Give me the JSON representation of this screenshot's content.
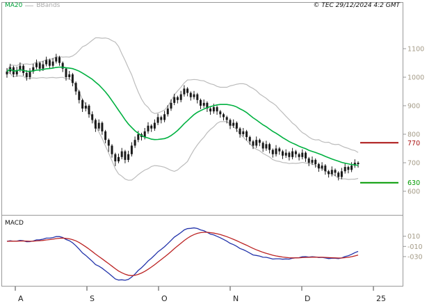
{
  "header": {
    "copyright": "© TEC 29/12/2024 4:2 GMT"
  },
  "legend": {
    "ma_label": "MA20",
    "bbands_label": "BBands"
  },
  "macd_panel": {
    "label": "MACD"
  },
  "chart_data": {
    "type": "candlestick",
    "panels": [
      "price",
      "macd"
    ],
    "axis_label_color": "#a39a86",
    "candle_color": "#1a1a1a",
    "price_axis": {
      "ticks": [
        1100,
        1000,
        900,
        800,
        700,
        600
      ]
    },
    "x_axis": {
      "labels": [
        "A",
        "S",
        "O",
        "N",
        "D",
        "25"
      ]
    },
    "levels": [
      {
        "label": "770",
        "value": 770,
        "color": "#aa1111"
      },
      {
        "label": "630",
        "value": 630,
        "color": "#009900"
      }
    ],
    "indicators": {
      "ma20": {
        "period": 20,
        "color": "#00b140"
      },
      "bbands": {
        "period": 20,
        "stddev": 2,
        "color": "#bcbcbc"
      },
      "macd": {
        "fast": 12,
        "slow": 26,
        "signal": 9,
        "macd_color": "#2233aa",
        "signal_color": "#bb2222",
        "ticks": [
          {
            "label": "010",
            "value": 10
          },
          {
            "label": "-010",
            "value": -10
          },
          {
            "label": "-030",
            "value": -30
          }
        ]
      }
    },
    "candles": [
      [
        1010,
        1032,
        998,
        1020
      ],
      [
        1020,
        1047,
        1012,
        1035
      ],
      [
        1035,
        1040,
        1000,
        1010
      ],
      [
        1010,
        1037,
        1002,
        1025
      ],
      [
        1025,
        1052,
        1018,
        1040
      ],
      [
        1040,
        1045,
        1005,
        1015
      ],
      [
        1015,
        1025,
        988,
        1000
      ],
      [
        1000,
        1032,
        992,
        1020
      ],
      [
        1020,
        1047,
        1012,
        1035
      ],
      [
        1035,
        1062,
        1028,
        1050
      ],
      [
        1050,
        1055,
        1020,
        1030
      ],
      [
        1030,
        1057,
        1022,
        1045
      ],
      [
        1045,
        1072,
        1038,
        1060
      ],
      [
        1060,
        1065,
        1030,
        1040
      ],
      [
        1040,
        1067,
        1032,
        1055
      ],
      [
        1055,
        1082,
        1048,
        1070
      ],
      [
        1070,
        1075,
        1040,
        1050
      ],
      [
        1050,
        1055,
        1018,
        1030
      ],
      [
        1030,
        1035,
        988,
        1000
      ],
      [
        1000,
        1022,
        992,
        1010
      ],
      [
        1010,
        1015,
        968,
        980
      ],
      [
        980,
        985,
        938,
        950
      ],
      [
        950,
        955,
        908,
        920
      ],
      [
        920,
        925,
        878,
        890
      ],
      [
        890,
        912,
        880,
        900
      ],
      [
        900,
        905,
        858,
        870
      ],
      [
        870,
        880,
        838,
        850
      ],
      [
        850,
        855,
        808,
        820
      ],
      [
        820,
        852,
        812,
        840
      ],
      [
        840,
        845,
        798,
        810
      ],
      [
        810,
        815,
        768,
        780
      ],
      [
        780,
        785,
        738,
        760
      ],
      [
        760,
        765,
        718,
        730
      ],
      [
        730,
        735,
        688,
        705
      ],
      [
        705,
        732,
        698,
        720
      ],
      [
        720,
        752,
        712,
        740
      ],
      [
        740,
        745,
        698,
        710
      ],
      [
        710,
        742,
        702,
        730
      ],
      [
        730,
        772,
        722,
        760
      ],
      [
        760,
        792,
        752,
        780
      ],
      [
        780,
        812,
        772,
        800
      ],
      [
        800,
        805,
        778,
        790
      ],
      [
        790,
        822,
        782,
        810
      ],
      [
        810,
        842,
        802,
        830
      ],
      [
        830,
        835,
        808,
        820
      ],
      [
        820,
        852,
        812,
        840
      ],
      [
        840,
        872,
        832,
        860
      ],
      [
        860,
        865,
        838,
        850
      ],
      [
        850,
        882,
        842,
        870
      ],
      [
        870,
        902,
        862,
        890
      ],
      [
        890,
        922,
        882,
        910
      ],
      [
        910,
        942,
        902,
        930
      ],
      [
        930,
        935,
        908,
        920
      ],
      [
        920,
        952,
        912,
        940
      ],
      [
        940,
        972,
        932,
        960
      ],
      [
        960,
        965,
        933,
        945
      ],
      [
        945,
        950,
        918,
        930
      ],
      [
        930,
        952,
        922,
        940
      ],
      [
        940,
        945,
        908,
        920
      ],
      [
        920,
        925,
        888,
        900
      ],
      [
        900,
        922,
        892,
        910
      ],
      [
        910,
        915,
        878,
        890
      ],
      [
        890,
        895,
        868,
        880
      ],
      [
        880,
        907,
        872,
        895
      ],
      [
        895,
        900,
        868,
        880
      ],
      [
        880,
        885,
        858,
        870
      ],
      [
        870,
        875,
        848,
        860
      ],
      [
        860,
        865,
        838,
        850
      ],
      [
        850,
        855,
        818,
        830
      ],
      [
        830,
        852,
        822,
        840
      ],
      [
        840,
        845,
        808,
        820
      ],
      [
        820,
        825,
        788,
        800
      ],
      [
        800,
        822,
        792,
        810
      ],
      [
        810,
        815,
        778,
        790
      ],
      [
        790,
        795,
        763,
        775
      ],
      [
        775,
        780,
        748,
        760
      ],
      [
        760,
        792,
        752,
        780
      ],
      [
        780,
        785,
        758,
        770
      ],
      [
        770,
        775,
        738,
        750
      ],
      [
        750,
        777,
        742,
        765
      ],
      [
        765,
        770,
        733,
        745
      ],
      [
        745,
        750,
        718,
        730
      ],
      [
        730,
        762,
        722,
        750
      ],
      [
        750,
        755,
        728,
        740
      ],
      [
        740,
        745,
        713,
        725
      ],
      [
        725,
        747,
        717,
        735
      ],
      [
        735,
        740,
        708,
        720
      ],
      [
        720,
        752,
        712,
        740
      ],
      [
        740,
        745,
        718,
        730
      ],
      [
        730,
        735,
        708,
        720
      ],
      [
        720,
        747,
        712,
        735
      ],
      [
        735,
        740,
        703,
        715
      ],
      [
        715,
        720,
        688,
        700
      ],
      [
        700,
        722,
        692,
        710
      ],
      [
        710,
        715,
        683,
        695
      ],
      [
        695,
        700,
        668,
        680
      ],
      [
        680,
        702,
        672,
        690
      ],
      [
        690,
        695,
        658,
        670
      ],
      [
        670,
        675,
        648,
        660
      ],
      [
        660,
        687,
        652,
        675
      ],
      [
        675,
        680,
        653,
        665
      ],
      [
        665,
        670,
        638,
        650
      ],
      [
        650,
        682,
        642,
        670
      ],
      [
        670,
        697,
        662,
        685
      ],
      [
        685,
        690,
        663,
        675
      ],
      [
        675,
        702,
        667,
        690
      ],
      [
        690,
        712,
        682,
        700
      ],
      [
        700,
        705,
        683,
        695
      ]
    ]
  }
}
